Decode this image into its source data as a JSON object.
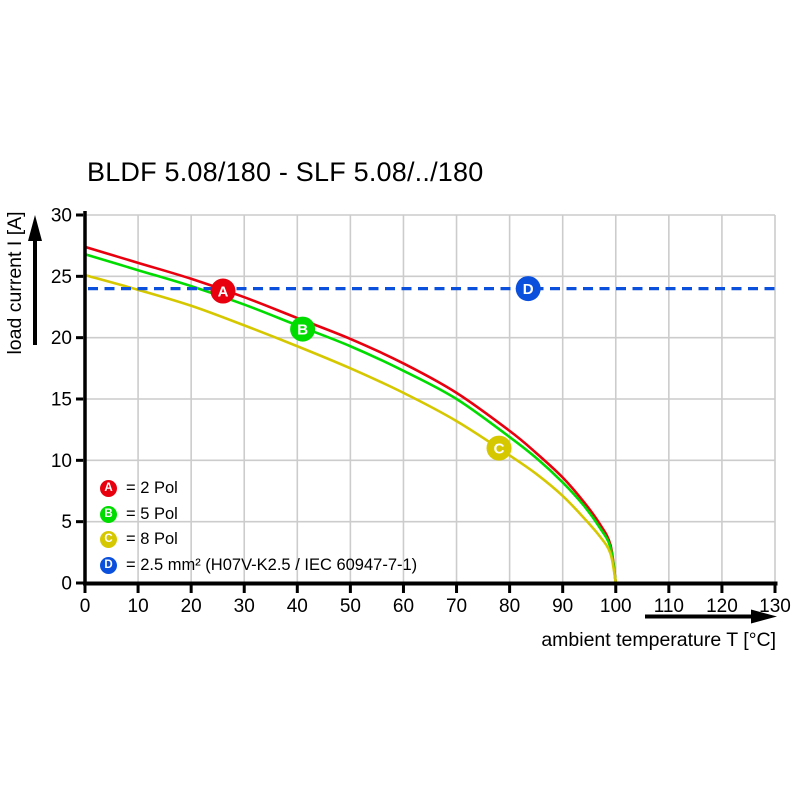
{
  "page": {
    "background": "#ffffff"
  },
  "chart_data": {
    "type": "line",
    "title": "BLDF 5.08/180 - SLF 5.08/../180",
    "xlabel": "ambient temperature T [°C]",
    "ylabel": "load current I [A]",
    "xlim": [
      0,
      130
    ],
    "ylim": [
      0,
      30
    ],
    "x_ticks": [
      0,
      10,
      20,
      30,
      40,
      50,
      60,
      70,
      80,
      90,
      100,
      110,
      120,
      130
    ],
    "y_ticks": [
      0,
      5,
      10,
      15,
      20,
      25,
      30
    ],
    "grid": true,
    "grid_color": "#cccccc",
    "axis_color": "#000000",
    "series": [
      {
        "id": "A",
        "name": "2 Pol",
        "color": "#e8000f",
        "style": "solid",
        "points": [
          [
            0,
            27.4
          ],
          [
            10,
            26.1
          ],
          [
            20,
            24.8
          ],
          [
            30,
            23.3
          ],
          [
            40,
            21.6
          ],
          [
            50,
            19.9
          ],
          [
            60,
            17.9
          ],
          [
            70,
            15.5
          ],
          [
            80,
            12.4
          ],
          [
            85,
            10.6
          ],
          [
            90,
            8.6
          ],
          [
            94,
            6.6
          ],
          [
            97,
            4.8
          ],
          [
            99,
            3.1
          ],
          [
            100,
            0
          ]
        ]
      },
      {
        "id": "B",
        "name": "5 Pol",
        "color": "#00dc00",
        "style": "solid",
        "points": [
          [
            0,
            26.8
          ],
          [
            10,
            25.5
          ],
          [
            20,
            24.2
          ],
          [
            30,
            22.7
          ],
          [
            40,
            21.0
          ],
          [
            50,
            19.3
          ],
          [
            60,
            17.3
          ],
          [
            70,
            15.0
          ],
          [
            80,
            11.9
          ],
          [
            85,
            10.2
          ],
          [
            90,
            8.2
          ],
          [
            94,
            6.3
          ],
          [
            97,
            4.5
          ],
          [
            99,
            2.9
          ],
          [
            100,
            0
          ]
        ]
      },
      {
        "id": "C",
        "name": "8 Pol",
        "color": "#d6c800",
        "style": "solid",
        "points": [
          [
            0,
            25.1
          ],
          [
            10,
            23.9
          ],
          [
            20,
            22.6
          ],
          [
            30,
            21.0
          ],
          [
            40,
            19.3
          ],
          [
            50,
            17.5
          ],
          [
            60,
            15.5
          ],
          [
            70,
            13.2
          ],
          [
            80,
            10.4
          ],
          [
            85,
            8.9
          ],
          [
            90,
            7.1
          ],
          [
            94,
            5.3
          ],
          [
            97,
            3.8
          ],
          [
            99,
            2.4
          ],
          [
            100,
            0
          ]
        ]
      },
      {
        "id": "D",
        "name": "2.5 mm² (H07V-K2.5 / IEC 60947-7-1)",
        "color": "#0b50dc",
        "style": "dashed",
        "points": [
          [
            0,
            24
          ],
          [
            130,
            24
          ]
        ]
      }
    ],
    "markers": [
      {
        "label": "A",
        "x": 26,
        "y": 23.8,
        "color": "#e8000f"
      },
      {
        "label": "B",
        "x": 41,
        "y": 20.7,
        "color": "#00dc00"
      },
      {
        "label": "C",
        "x": 78,
        "y": 11.0,
        "color": "#d6c800"
      },
      {
        "label": "D",
        "x": 83.5,
        "y": 24.0,
        "color": "#0b50dc"
      }
    ],
    "legend": [
      {
        "letter": "A",
        "color": "#e8000f",
        "text": "= 2 Pol"
      },
      {
        "letter": "B",
        "color": "#00dc00",
        "text": "= 5 Pol"
      },
      {
        "letter": "C",
        "color": "#d6c800",
        "text": "= 8 Pol"
      },
      {
        "letter": "D",
        "color": "#0b50dc",
        "text": "= 2.5 mm² (H07V-K2.5 / IEC 60947-7-1)"
      }
    ]
  }
}
